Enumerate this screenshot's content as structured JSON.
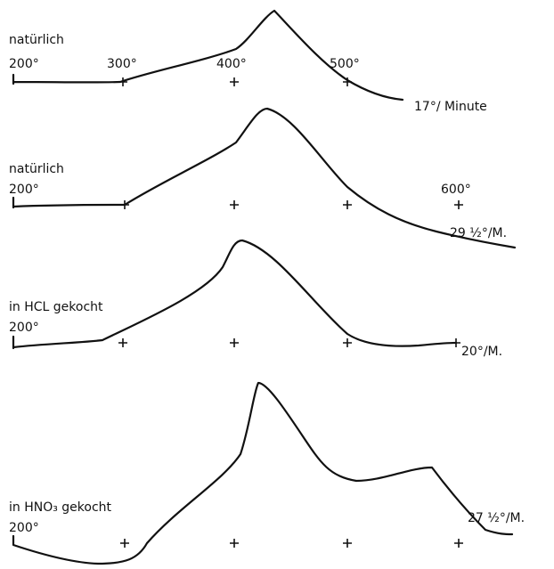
{
  "panels": [
    {
      "label": "natürlich",
      "ticks": [
        "200°",
        "300°",
        "400°",
        "500°"
      ],
      "rate": "17°/ Minute"
    },
    {
      "label": "natürlich",
      "ticks": [
        "200°",
        "600°"
      ],
      "rate": "29 ½°/M."
    },
    {
      "label": "in HCL gekocht",
      "ticks": [
        "200°"
      ],
      "rate": "20°/M."
    },
    {
      "label": "in HNO₃ gekocht",
      "ticks": [
        "200°"
      ],
      "rate": "27 ½°/M."
    }
  ]
}
